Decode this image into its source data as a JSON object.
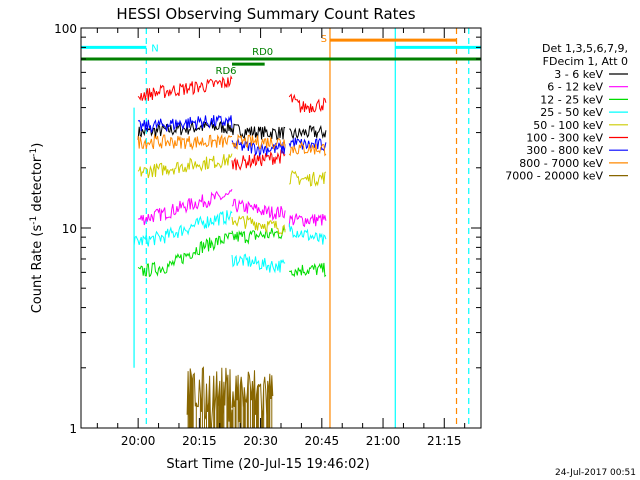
{
  "chart_data": {
    "type": "line",
    "title": "HESSI Observing Summary Count Rates",
    "xlabel": "Start Time (20-Jul-15 19:46:02)",
    "ylabel": "Count Rate (s",
    "ylabel_sup1": "-1",
    "ylabel_mid": " detector",
    "ylabel_sup2": "-1",
    "ylabel_end": ")",
    "xscale": "linear",
    "yscale": "log",
    "xlim": [
      "19:46",
      "21:24"
    ],
    "ylim": [
      1,
      100
    ],
    "xticks": [
      "20:00",
      "20:15",
      "20:30",
      "20:45",
      "21:00",
      "21:15"
    ],
    "xminor_ticks": [
      "19:50",
      "19:55",
      "20:05",
      "20:10",
      "20:20",
      "20:25",
      "20:35",
      "20:40",
      "20:50",
      "20:55",
      "21:05",
      "21:10",
      "21:20"
    ],
    "yticks": [
      {
        "value": 1,
        "label": "1"
      },
      {
        "value": 10,
        "label": "10"
      },
      {
        "value": 100,
        "label": "100"
      }
    ],
    "legend": {
      "placement": "right",
      "header": [
        "Det 1,3,5,6,7,9,",
        "FDecim 1, Att 0"
      ],
      "items": [
        {
          "label": "3 - 6 keV",
          "color": "#000000"
        },
        {
          "label": "6 - 12 keV",
          "color": "#ff00ff"
        },
        {
          "label": "12 - 25 keV",
          "color": "#00dd00"
        },
        {
          "label": "25 - 50 keV",
          "color": "#00ffff"
        },
        {
          "label": "50 - 100 keV",
          "color": "#cccc00"
        },
        {
          "label": "100 - 300 keV",
          "color": "#ff0000"
        },
        {
          "label": "300 - 800 keV",
          "color": "#0000ff"
        },
        {
          "label": "800 - 7000 keV",
          "color": "#ff8800"
        },
        {
          "label": "7000 - 20000 keV",
          "color": "#886600"
        }
      ]
    },
    "series": [
      {
        "name": "3 - 6 keV",
        "color": "#000000",
        "segments": [
          {
            "x": [
              "20:00",
              "20:08",
              "20:15",
              "20:23"
            ],
            "y": [
              30,
              31,
              32,
              32
            ]
          },
          {
            "x": [
              "20:23",
              "20:30",
              "20:36"
            ],
            "y": [
              31,
              30,
              30
            ]
          },
          {
            "x": [
              "20:37",
              "20:41",
              "20:46"
            ],
            "y": [
              29,
              30,
              30
            ]
          }
        ]
      },
      {
        "name": "6 - 12 keV",
        "color": "#ff00ff",
        "segments": [
          {
            "x": [
              "20:00",
              "20:06",
              "20:12",
              "20:18",
              "20:23"
            ],
            "y": [
              11,
              11.8,
              13,
              14,
              14.5
            ]
          },
          {
            "x": [
              "20:23",
              "20:28",
              "20:32",
              "20:36"
            ],
            "y": [
              13,
              12.5,
              12,
              12
            ]
          },
          {
            "x": [
              "20:37",
              "20:41",
              "20:46"
            ],
            "y": [
              11,
              11,
              11
            ]
          }
        ]
      },
      {
        "name": "12 - 25 keV",
        "color": "#00dd00",
        "segments": [
          {
            "x": [
              "20:00",
              "20:08",
              "20:15",
              "20:23"
            ],
            "y": [
              6,
              6.5,
              8,
              9
            ]
          },
          {
            "x": [
              "20:23",
              "20:30",
              "20:36"
            ],
            "y": [
              9,
              9.2,
              9.5
            ]
          },
          {
            "x": [
              "20:37",
              "20:46"
            ],
            "y": [
              6.2,
              6.2
            ]
          }
        ]
      },
      {
        "name": "25 - 50 keV",
        "color": "#00ffff",
        "segments": [
          {
            "x": [
              "19:59",
              "20:06",
              "20:12",
              "20:18",
              "20:23"
            ],
            "y": [
              8.5,
              9,
              10,
              11,
              11.5
            ]
          },
          {
            "x": [
              "20:23",
              "20:27",
              "20:32",
              "20:36"
            ],
            "y": [
              7,
              6.8,
              6.5,
              6.5
            ]
          },
          {
            "x": [
              "20:37",
              "20:41",
              "20:46"
            ],
            "y": [
              10,
              9.3,
              8.5
            ]
          }
        ]
      },
      {
        "name": "50 - 100 keV",
        "color": "#cccc00",
        "segments": [
          {
            "x": [
              "20:00",
              "20:08",
              "20:15",
              "20:23"
            ],
            "y": [
              19,
              20,
              21,
              22
            ]
          },
          {
            "x": [
              "20:23",
              "20:30",
              "20:36"
            ],
            "y": [
              11,
              10.5,
              10
            ]
          },
          {
            "x": [
              "20:37",
              "20:41",
              "20:46"
            ],
            "y": [
              18,
              17.5,
              18
            ]
          }
        ]
      },
      {
        "name": "100 - 300 keV",
        "color": "#ff0000",
        "segments": [
          {
            "x": [
              "20:00",
              "20:06",
              "20:12",
              "20:18",
              "20:23"
            ],
            "y": [
              46,
              48,
              50,
              52,
              54
            ]
          },
          {
            "x": [
              "20:23",
              "20:30",
              "20:36"
            ],
            "y": [
              21,
              22,
              23
            ]
          },
          {
            "x": [
              "20:37",
              "20:40",
              "20:46"
            ],
            "y": [
              45,
              40,
              42
            ]
          }
        ]
      },
      {
        "name": "300 - 800 keV",
        "color": "#0000ff",
        "segments": [
          {
            "x": [
              "20:00",
              "20:08",
              "20:15",
              "20:23"
            ],
            "y": [
              32,
              33,
              34,
              34
            ]
          },
          {
            "x": [
              "20:23",
              "20:30",
              "20:36"
            ],
            "y": [
              26,
              25,
              25
            ]
          },
          {
            "x": [
              "20:37",
              "20:41",
              "20:46"
            ],
            "y": [
              27,
              26,
              26
            ]
          }
        ]
      },
      {
        "name": "800 - 7000 keV",
        "color": "#ff8800",
        "segments": [
          {
            "x": [
              "20:00",
              "20:08",
              "20:15",
              "20:23"
            ],
            "y": [
              27,
              27,
              27,
              27
            ]
          },
          {
            "x": [
              "20:23",
              "20:30",
              "20:36"
            ],
            "y": [
              27,
              27,
              27
            ]
          },
          {
            "x": [
              "20:37",
              "20:41",
              "20:46"
            ],
            "y": [
              25,
              25,
              25
            ]
          }
        ]
      },
      {
        "name": "7000 - 20000 keV",
        "color": "#886600",
        "segments": [
          {
            "x": [
              "20:12",
              "20:18",
              "20:23"
            ],
            "y": [
              1.5,
              1.5,
              1.5
            ]
          },
          {
            "x": [
              "20:23",
              "20:30",
              "20:33"
            ],
            "y": [
              1.5,
              1.5,
              1.5
            ]
          }
        ]
      }
    ],
    "flags": [
      {
        "label": "N",
        "color": "#00ffff",
        "x_start": "19:46",
        "x_end": "20:02",
        "y": 80,
        "label_side": "right"
      },
      {
        "label": "",
        "color": "#00ffff",
        "x_start": "21:03",
        "x_end": "21:24",
        "y": 80,
        "label_side": "none"
      },
      {
        "label": "S",
        "color": "#ff8800",
        "x_start": "20:47",
        "x_end": "21:18",
        "y": 87,
        "label_side": "left"
      },
      {
        "label": "RD0",
        "color": "#008000",
        "x_start": "19:46",
        "x_end": "21:24",
        "y": 70,
        "label_side": "above"
      },
      {
        "label": "RD6",
        "color": "#008000",
        "x_start": "20:23",
        "x_end": "20:31",
        "y": 66,
        "label_side": "below-left"
      }
    ],
    "vlines": [
      {
        "x": "20:02",
        "color": "#00ffff",
        "style": "dashed"
      },
      {
        "x": "19:59",
        "color": "#00ffff",
        "style": "solid",
        "y_from": 2,
        "y_to": 40
      },
      {
        "x": "20:47",
        "color": "#ff8800",
        "style": "solid"
      },
      {
        "x": "21:03",
        "color": "#00ffff",
        "style": "solid"
      },
      {
        "x": "21:18",
        "color": "#ff8800",
        "style": "dashed"
      },
      {
        "x": "21:21",
        "color": "#00ffff",
        "style": "dashed"
      }
    ]
  },
  "footer": {
    "date": "24-Jul-2017 00:51"
  }
}
